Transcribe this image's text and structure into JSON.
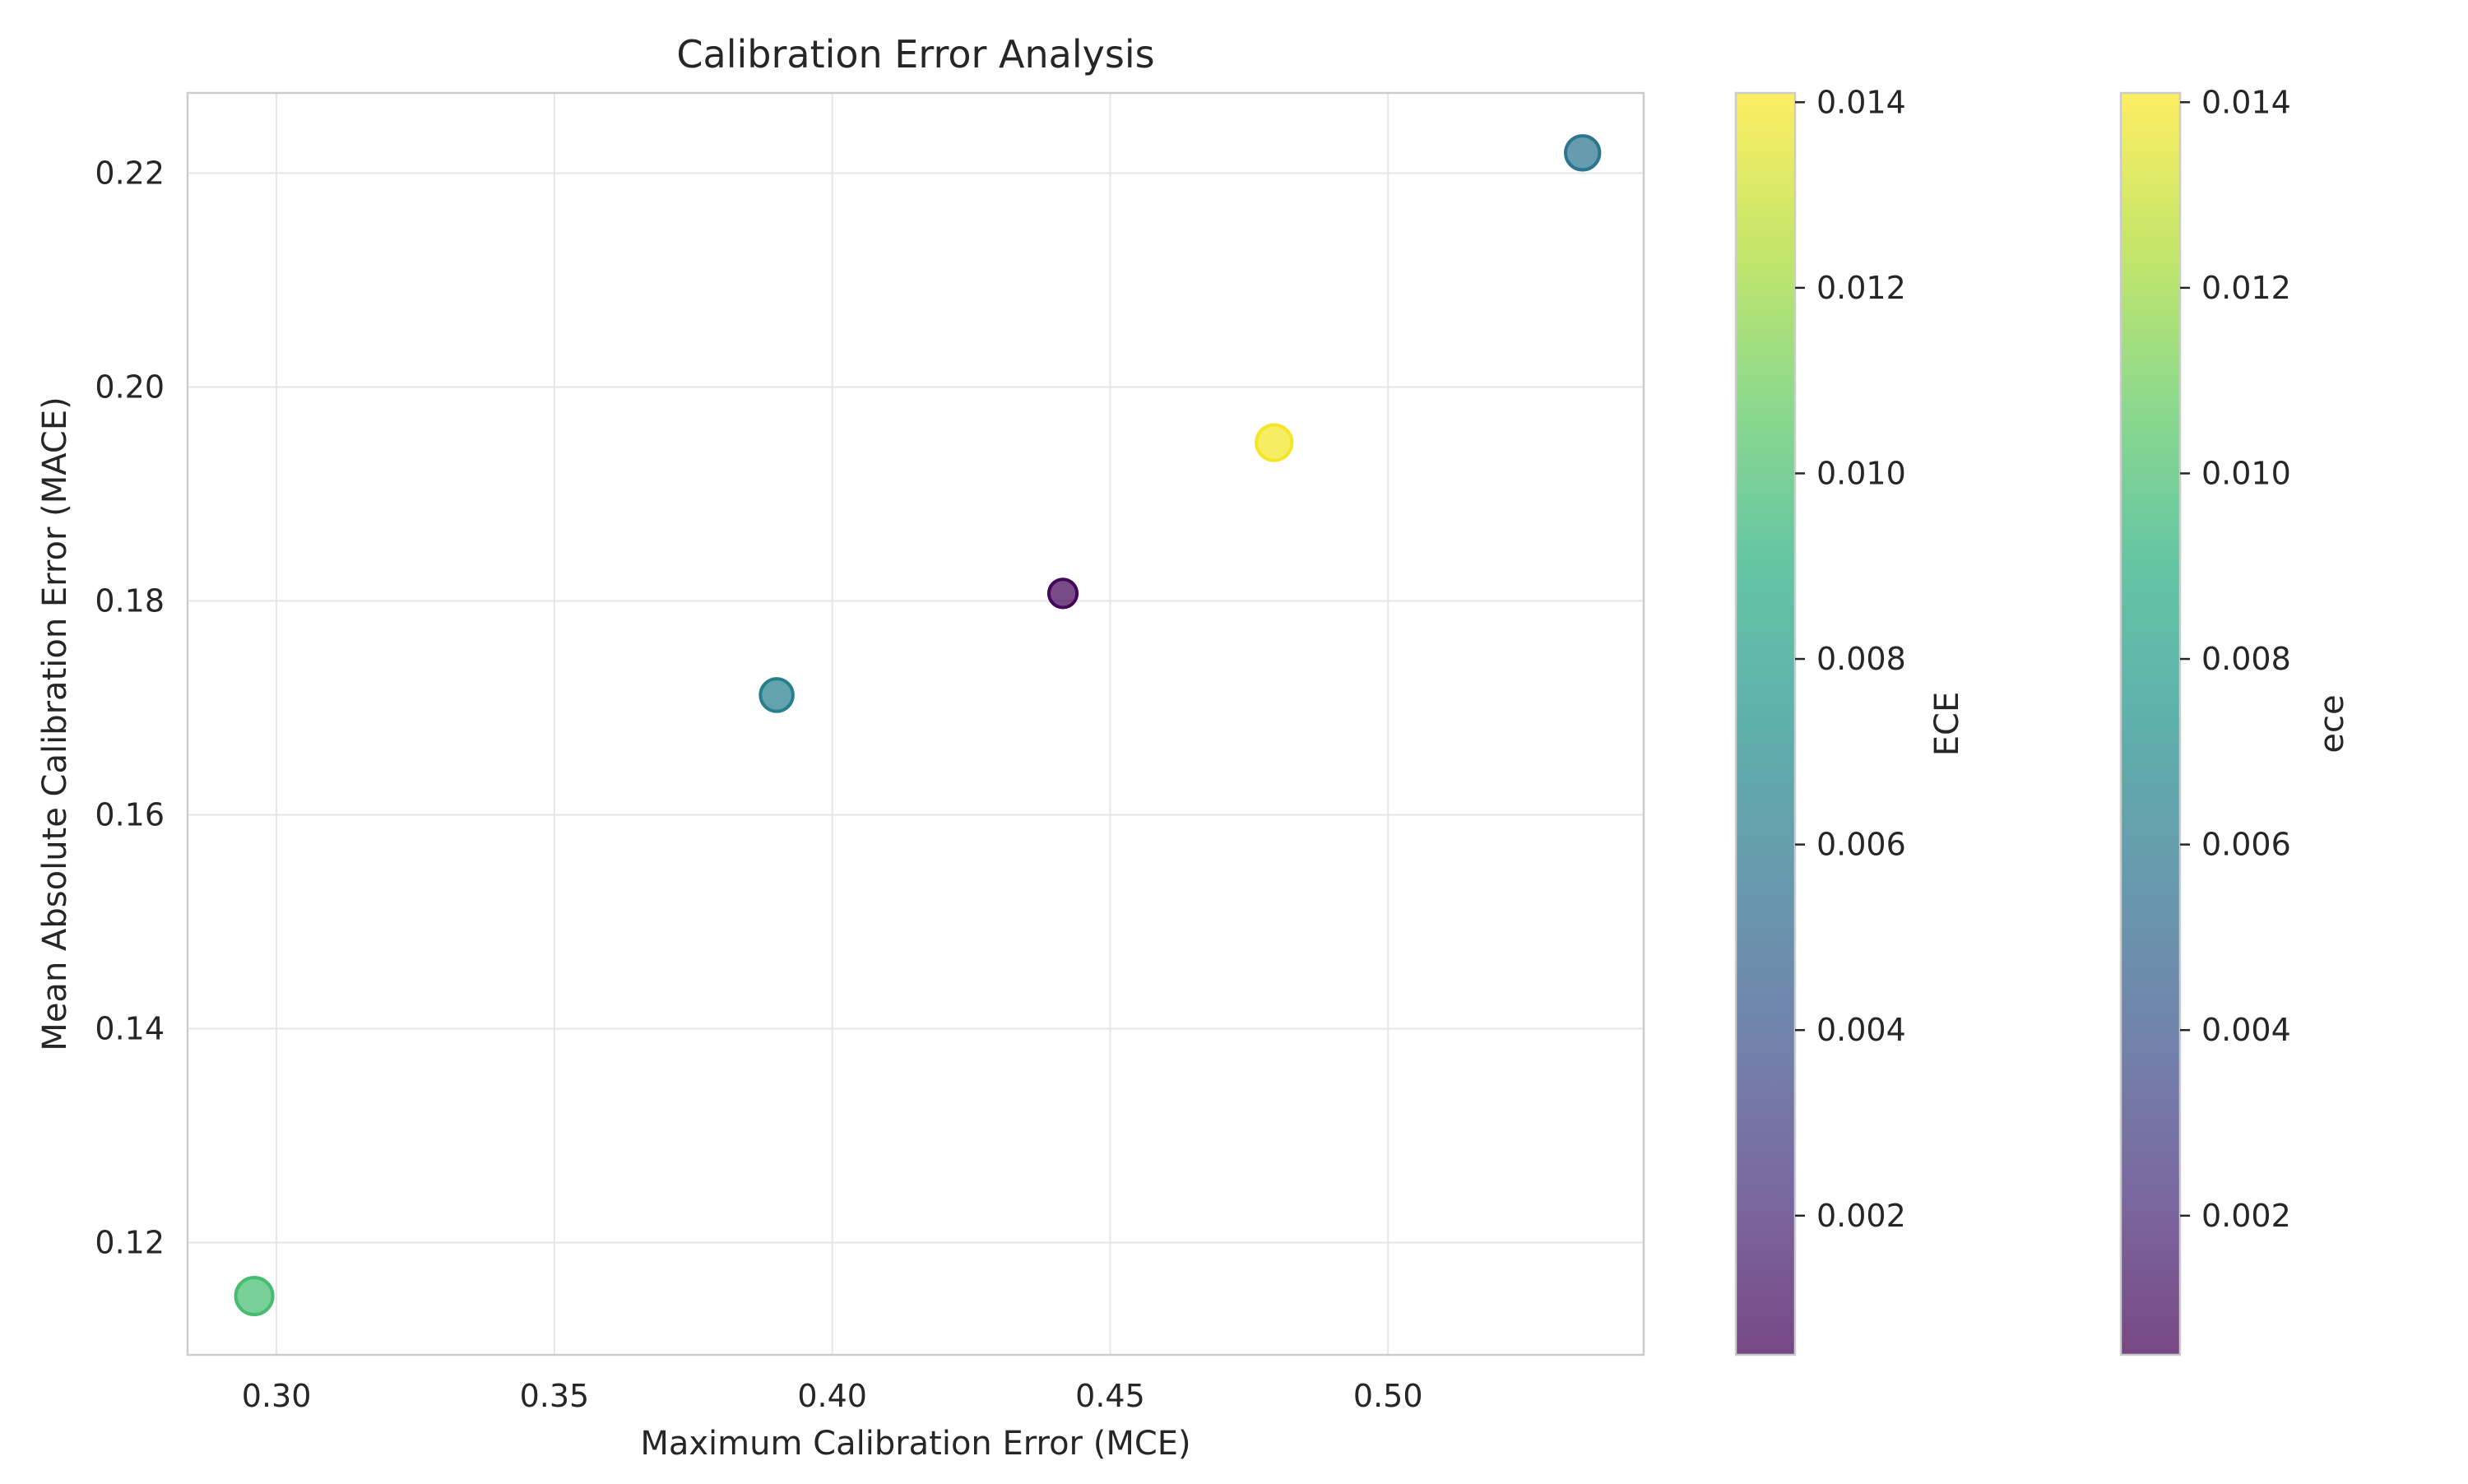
{
  "chart_data": {
    "type": "scatter",
    "title": "Calibration Error Analysis",
    "xlabel": "Maximum Calibration Error (MCE)",
    "ylabel": "Mean Absolute Calibration Error (MACE)",
    "xlim": [
      0.284,
      0.546
    ],
    "ylim": [
      0.1095,
      0.2275
    ],
    "x_ticks": [
      0.3,
      0.35,
      0.4,
      0.45,
      0.5
    ],
    "x_tick_labels": [
      "0.30",
      "0.35",
      "0.40",
      "0.45",
      "0.50"
    ],
    "y_ticks": [
      0.12,
      0.14,
      0.16,
      0.18,
      0.2,
      0.22
    ],
    "y_tick_labels": [
      "0.12",
      "0.14",
      "0.16",
      "0.18",
      "0.20",
      "0.22"
    ],
    "grid": true,
    "colormap": "viridis",
    "points": [
      {
        "x": 0.296,
        "y": 0.115,
        "ece": 0.0099,
        "size": 1.25
      },
      {
        "x": 0.39,
        "y": 0.1712,
        "ece": 0.0063,
        "size": 1.1
      },
      {
        "x": 0.4415,
        "y": 0.1807,
        "ece": 0.0007,
        "size": 0.95
      },
      {
        "x": 0.4795,
        "y": 0.1948,
        "ece": 0.0139,
        "size": 1.2
      },
      {
        "x": 0.535,
        "y": 0.2219,
        "ece": 0.0058,
        "size": 1.15
      }
    ],
    "colorbars": [
      {
        "label": "ECE",
        "range": [
          0.0005,
          0.0141
        ],
        "ticks": [
          0.002,
          0.004,
          0.006,
          0.008,
          0.01,
          0.012,
          0.014
        ],
        "tick_labels": [
          "0.002",
          "0.004",
          "0.006",
          "0.008",
          "0.010",
          "0.012",
          "0.014"
        ]
      },
      {
        "label": "ece",
        "range": [
          0.0005,
          0.0141
        ],
        "ticks": [
          0.002,
          0.004,
          0.006,
          0.008,
          0.01,
          0.012,
          0.014
        ],
        "tick_labels": [
          "0.002",
          "0.004",
          "0.006",
          "0.008",
          "0.010",
          "0.012",
          "0.014"
        ]
      }
    ]
  }
}
